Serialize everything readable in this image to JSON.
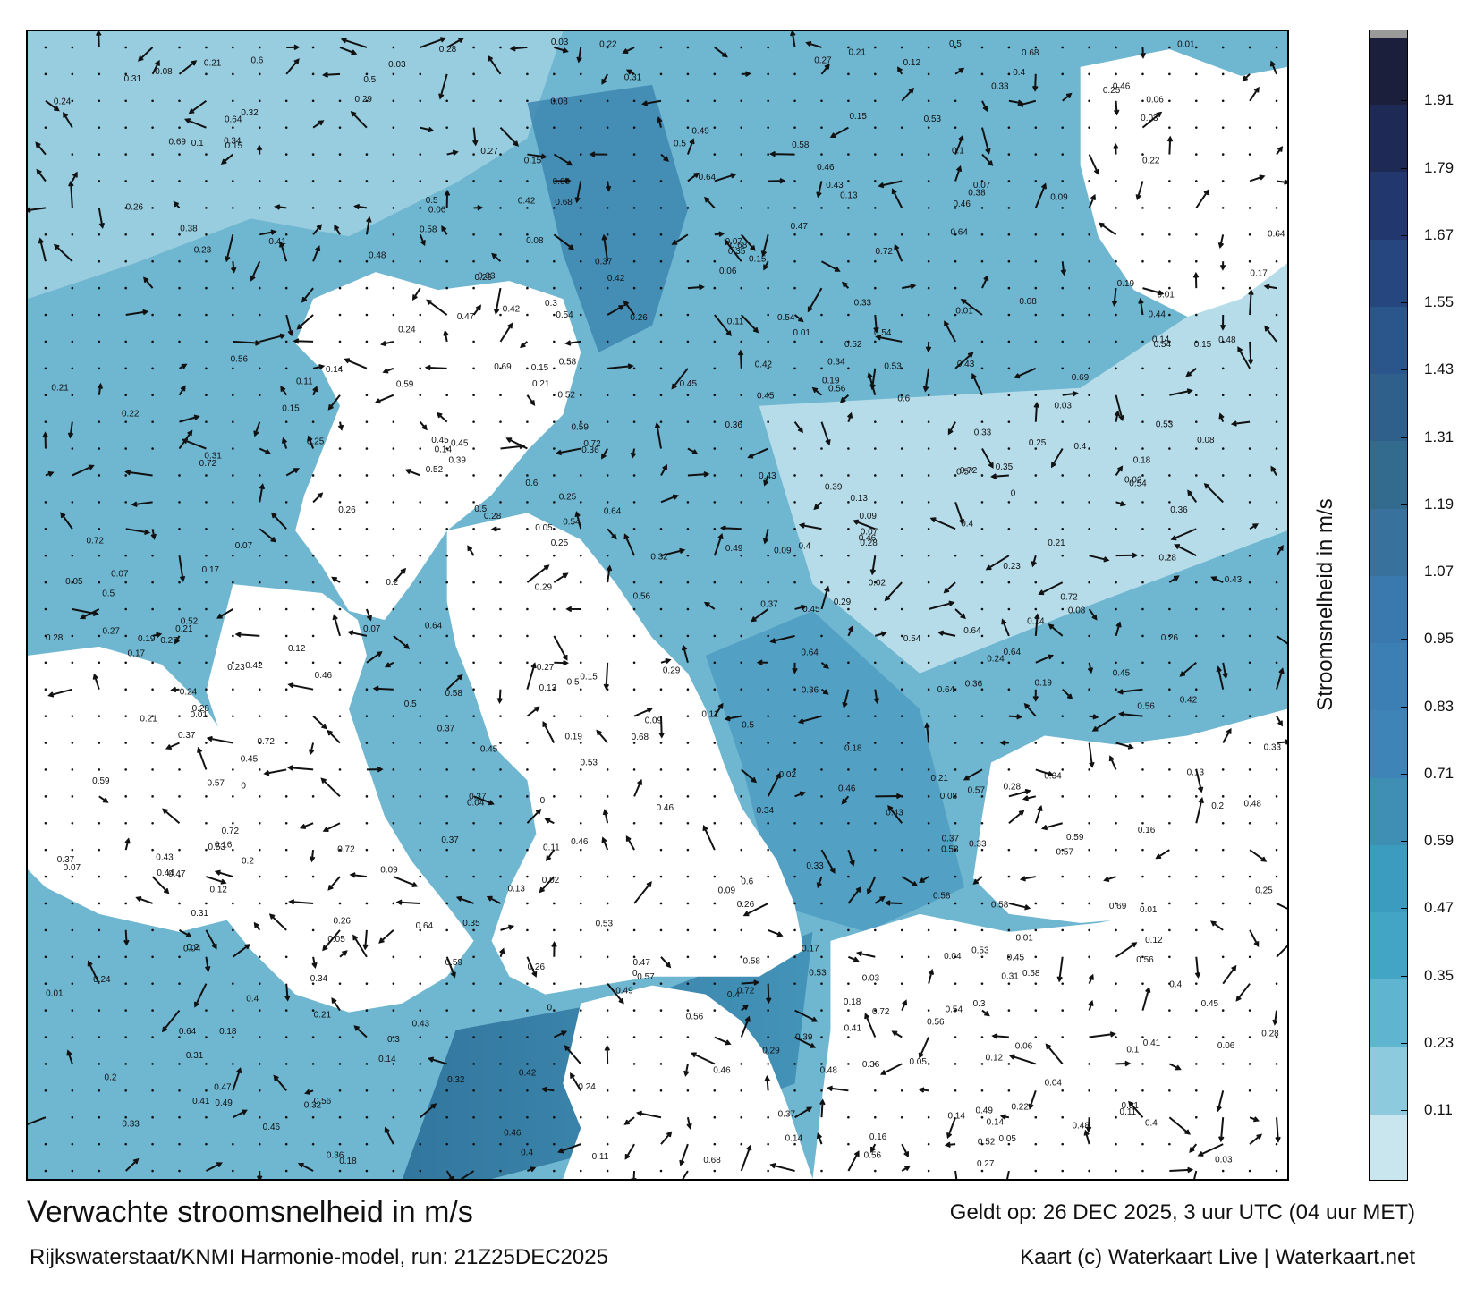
{
  "footer": {
    "title": "Verwachte stroomsnelheid in m/s",
    "valid_time": "Geldt op: 26 DEC 2025, 3 uur UTC (04 uur MET)",
    "model_run": "Rijkswaterstaat/KNMI Harmonie-model, run: 21Z25DEC2025",
    "credits": "Kaart (c) Waterkaart Live | Waterkaart.net"
  },
  "colorbar": {
    "label": "Stroomsnelheid in m/s",
    "ticks": [
      "1.91",
      "1.79",
      "1.67",
      "1.55",
      "1.43",
      "1.31",
      "1.19",
      "1.07",
      "0.95",
      "0.83",
      "0.71",
      "0.59",
      "0.47",
      "0.35",
      "0.23",
      "0.11"
    ],
    "colors": [
      "#1b1f3b",
      "#1e2a55",
      "#21376e",
      "#26467f",
      "#2b568c",
      "#2f5f8b",
      "#336b8f",
      "#37719c",
      "#3a79ad",
      "#3b7fb5",
      "#3f84b6",
      "#3e8fb3",
      "#3b9cbf",
      "#42a5c5",
      "#5fb4cf",
      "#8dcade",
      "#c9e6ef"
    ],
    "top_cap": "#9a9a9a"
  },
  "map": {
    "sea_color": "#5aa8c8",
    "land_color": "#ffffff",
    "speed_labels": [
      "0.16",
      "0.1",
      "0.11",
      "0.09",
      "0.07",
      "0.14",
      "0.13",
      "0.12",
      "0.04",
      "0.05",
      "0.06",
      "0.08",
      "0.15",
      "0.17",
      "0.21",
      "0.2",
      "0.19",
      "0.18",
      "0.22",
      "0.24",
      "0.23",
      "0.25",
      "0.26",
      "0.27",
      "0.28",
      "0.29",
      "0.3",
      "0.31",
      "0.32",
      "0.33",
      "0.34",
      "0.35",
      "0.36",
      "0.37",
      "0.38",
      "0.39",
      "0.4",
      "0.41",
      "0.42",
      "0.43",
      "0.44",
      "0.45",
      "0.46",
      "0.47",
      "0.48",
      "0.49",
      "0.5",
      "0.52",
      "0.53",
      "0.54",
      "0.56",
      "0.57",
      "0.58",
      "0.59",
      "0.6",
      "0.64",
      "0.68",
      "0.69",
      "0.72",
      "0.03",
      "0.02",
      "0.01",
      "0"
    ]
  }
}
